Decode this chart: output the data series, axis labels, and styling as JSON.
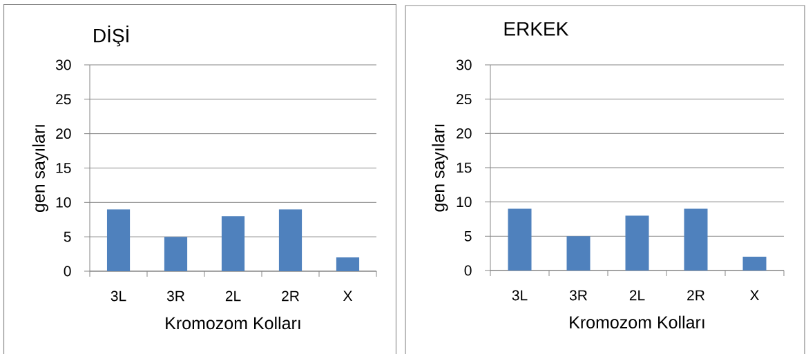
{
  "chart_data": [
    {
      "type": "bar",
      "title": "DİŞİ",
      "xlabel": "Kromozom Kolları",
      "ylabel": "gen sayıları",
      "categories": [
        "3L",
        "3R",
        "2L",
        "2R",
        "X"
      ],
      "values": [
        9,
        5,
        8,
        9,
        2
      ],
      "color": "#4f81bd",
      "ylim": [
        0,
        30
      ],
      "yticks": [
        0,
        5,
        10,
        15,
        20,
        25,
        30
      ],
      "grid": "y"
    },
    {
      "type": "bar",
      "title": "ERKEK",
      "xlabel": "Kromozom Kolları",
      "ylabel": "gen sayıları",
      "categories": [
        "3L",
        "3R",
        "2L",
        "2R",
        "X"
      ],
      "values": [
        9,
        5,
        8,
        9,
        2
      ],
      "color": "#4f81bd",
      "ylim": [
        0,
        30
      ],
      "yticks": [
        0,
        5,
        10,
        15,
        20,
        25,
        30
      ],
      "grid": "y"
    }
  ]
}
